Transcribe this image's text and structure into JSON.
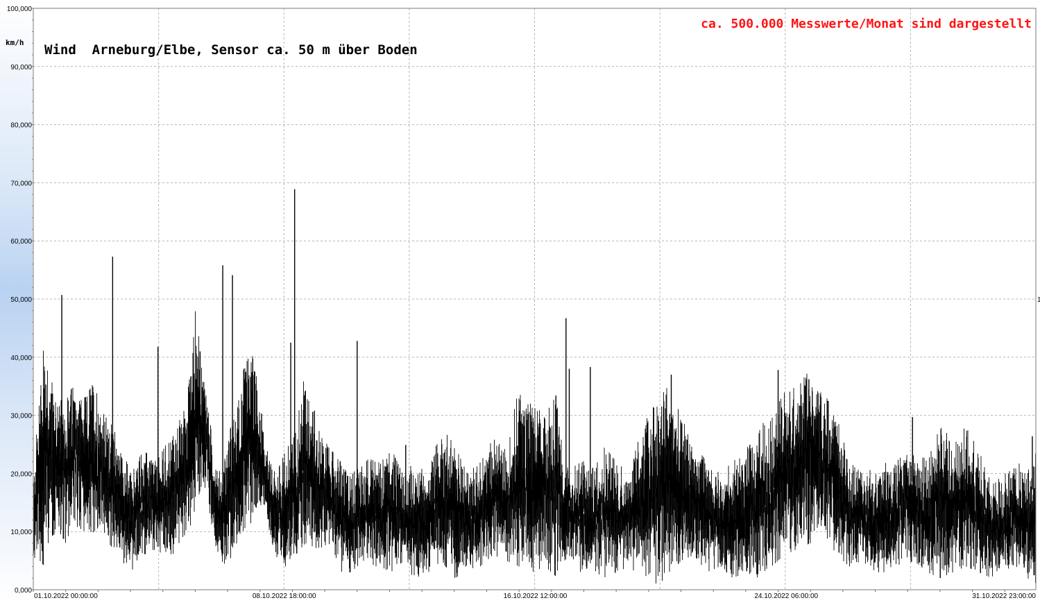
{
  "chart_data": {
    "type": "line",
    "title": "Wind  Arneburg/Elbe, Sensor ca. 50 m über Boden",
    "annotation": "ca. 500.000 Messwerte/Monat sind dargestellt",
    "ylabel": "km/h",
    "xlabel": "",
    "ylim": [
      0,
      100
    ],
    "xlim": [
      "01.10.2022 00:00:00",
      "31.10.2022 23:00:00"
    ],
    "grid": true,
    "y_tick_labels": [
      "0,000",
      "10,000",
      "20,000",
      "30,000",
      "40,000",
      "50,000",
      "60,000",
      "70,000",
      "80,000",
      "90,000",
      "100,000"
    ],
    "x_tick_labels": [
      "01.10.2022  00:00:00",
      "08.10.2022  18:00:00",
      "16.10.2022  12:00:00",
      "24.10.2022  06:00:00",
      "31.10.2022  23:00:00"
    ],
    "right_marker": "1",
    "series_color": "#000000",
    "annotation_color": "#ff1414",
    "envelope_days": [
      0.0,
      0.3,
      0.5,
      0.8,
      1.0,
      1.3,
      1.6,
      1.9,
      2.2,
      2.6,
      3.0,
      3.4,
      3.8,
      4.2,
      4.6,
      4.8,
      5.0,
      5.2,
      5.4,
      5.6,
      5.8,
      6.0,
      6.2,
      6.5,
      6.8,
      7.0,
      7.3,
      7.5,
      7.8,
      8.1,
      8.4,
      8.8,
      9.2,
      9.5,
      9.8,
      10.2,
      10.6,
      11.0,
      11.4,
      11.8,
      12.2,
      12.6,
      13.0,
      13.4,
      13.8,
      14.2,
      14.6,
      15.0,
      15.4,
      15.8,
      16.2,
      16.4,
      16.6,
      16.9,
      17.2,
      17.6,
      18.0,
      18.4,
      18.8,
      19.2,
      19.6,
      20.0,
      20.4,
      20.8,
      21.2,
      21.6,
      22.0,
      22.4,
      22.8,
      23.2,
      23.6,
      24.0,
      24.4,
      24.8,
      25.2,
      25.6,
      26.0,
      26.4,
      26.8,
      27.2,
      27.6,
      28.0,
      28.4,
      28.8,
      29.2,
      29.6,
      30.0,
      30.4,
      30.7,
      31.0
    ],
    "envelope_min": [
      5,
      4,
      9,
      10,
      8,
      11,
      10,
      8,
      9,
      6,
      3,
      6,
      7,
      5,
      9,
      10,
      14,
      18,
      15,
      8,
      5,
      4,
      7,
      10,
      12,
      15,
      10,
      5,
      4,
      6,
      8,
      7,
      8,
      3,
      3,
      5,
      4,
      3,
      4,
      2,
      3,
      5,
      2,
      3,
      4,
      6,
      5,
      4,
      3,
      4,
      2,
      5,
      6,
      3,
      4,
      2,
      3,
      4,
      2,
      1,
      2,
      5,
      6,
      3,
      4,
      2,
      3,
      2,
      4,
      6,
      7,
      8,
      10,
      6,
      4,
      5,
      3,
      3,
      4,
      5,
      3,
      2,
      3,
      4,
      3,
      2,
      3,
      4,
      2,
      1
    ],
    "envelope_max": [
      18,
      45,
      38,
      32,
      34,
      35,
      33,
      36,
      30,
      27,
      20,
      24,
      22,
      26,
      30,
      38,
      48,
      40,
      32,
      22,
      20,
      26,
      30,
      38,
      42,
      30,
      22,
      20,
      24,
      27,
      38,
      28,
      24,
      22,
      20,
      23,
      22,
      25,
      20,
      22,
      20,
      28,
      25,
      20,
      22,
      26,
      24,
      35,
      32,
      30,
      34,
      22,
      20,
      23,
      20,
      25,
      22,
      20,
      28,
      32,
      35,
      30,
      25,
      22,
      20,
      22,
      24,
      28,
      30,
      34,
      35,
      38,
      34,
      30,
      22,
      20,
      21,
      22,
      24,
      25,
      22,
      28,
      26,
      28,
      24,
      18,
      20,
      22,
      20,
      26
    ],
    "spikes": [
      {
        "day": 0.88,
        "value": 50.7
      },
      {
        "day": 2.45,
        "value": 57.3
      },
      {
        "day": 3.85,
        "value": 41.8
      },
      {
        "day": 5.15,
        "value": 41.0
      },
      {
        "day": 5.85,
        "value": 55.8
      },
      {
        "day": 6.15,
        "value": 54.1
      },
      {
        "day": 7.05,
        "value": 30.3
      },
      {
        "day": 7.95,
        "value": 42.5
      },
      {
        "day": 8.07,
        "value": 68.9
      },
      {
        "day": 10.0,
        "value": 42.8
      },
      {
        "day": 11.5,
        "value": 24.9
      },
      {
        "day": 16.45,
        "value": 46.7
      },
      {
        "day": 16.55,
        "value": 38.0
      },
      {
        "day": 17.2,
        "value": 38.3
      },
      {
        "day": 19.7,
        "value": 37.0
      },
      {
        "day": 23.0,
        "value": 37.8
      },
      {
        "day": 23.95,
        "value": 36.2
      },
      {
        "day": 27.15,
        "value": 29.7
      },
      {
        "day": 30.85,
        "value": 26.4
      }
    ]
  }
}
